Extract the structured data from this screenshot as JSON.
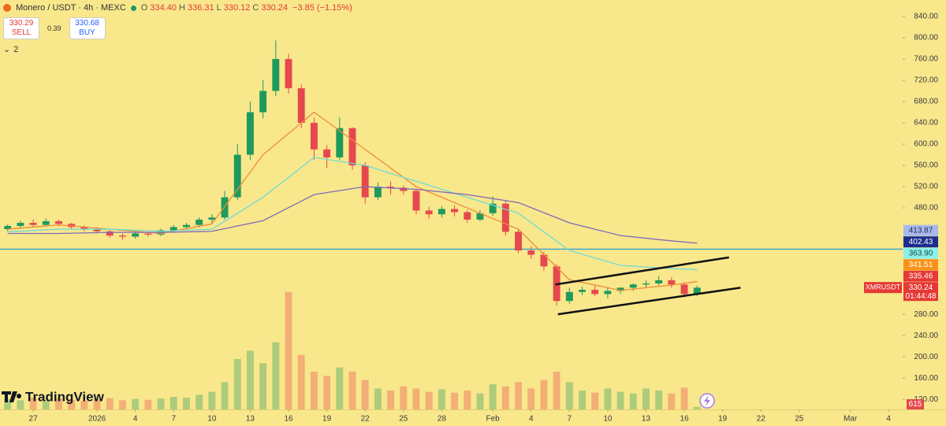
{
  "header": {
    "symbol": "Monero / USDT · 4h · MEXC",
    "ohlc": [
      {
        "label": "O",
        "value": "334.40"
      },
      {
        "label": "H",
        "value": "336.31"
      },
      {
        "label": "L",
        "value": "330.12"
      },
      {
        "label": "C",
        "value": "330.24"
      }
    ],
    "change": "−3.85 (−1.15%)",
    "sell": {
      "price": "330.29",
      "label": "SELL"
    },
    "spread": "0.39",
    "buy": {
      "price": "330.68",
      "label": "BUY"
    },
    "indicators": "2"
  },
  "branding": "TradingView",
  "chart_data": {
    "type": "candlestick",
    "x": [
      -2,
      -1,
      0,
      1,
      2,
      3,
      4,
      5,
      6,
      7,
      8,
      9,
      10,
      11,
      12,
      13,
      14,
      15,
      16,
      17,
      18,
      19,
      20,
      21,
      22,
      23,
      24,
      25,
      26,
      27,
      28,
      29,
      30,
      31,
      32,
      33,
      34,
      35,
      36,
      37,
      38,
      39,
      40,
      41,
      42,
      43,
      44,
      45,
      46,
      47,
      48,
      49,
      50,
      51,
      52
    ],
    "open": [
      440,
      446,
      452,
      448,
      455,
      450,
      444,
      440,
      436,
      428,
      426,
      432,
      430,
      438,
      444,
      448,
      458,
      462,
      500,
      580,
      660,
      700,
      760,
      705,
      640,
      590,
      575,
      630,
      560,
      500,
      520,
      518,
      512,
      475,
      468,
      478,
      472,
      458,
      470,
      488,
      435,
      400,
      392,
      370,
      305,
      322,
      326,
      318,
      324,
      330,
      336,
      338,
      344,
      336,
      318
    ],
    "high": [
      449,
      456,
      458,
      460,
      458,
      452,
      447,
      444,
      438,
      432,
      436,
      435,
      441,
      448,
      452,
      462,
      468,
      512,
      600,
      680,
      720,
      795,
      770,
      712,
      650,
      598,
      650,
      632,
      566,
      528,
      530,
      522,
      515,
      482,
      484,
      485,
      476,
      476,
      502,
      495,
      440,
      408,
      398,
      374,
      330,
      332,
      334,
      330,
      330,
      338,
      344,
      352,
      350,
      340,
      334
    ],
    "low": [
      436,
      441,
      444,
      445,
      446,
      440,
      436,
      432,
      424,
      420,
      422,
      426,
      427,
      434,
      440,
      444,
      452,
      458,
      495,
      570,
      648,
      690,
      695,
      630,
      570,
      555,
      570,
      552,
      488,
      495,
      505,
      505,
      468,
      460,
      462,
      464,
      452,
      455,
      465,
      428,
      395,
      384,
      362,
      296,
      300,
      316,
      314,
      310,
      318,
      324,
      330,
      334,
      330,
      312,
      314
    ],
    "close": [
      446,
      452,
      448,
      455,
      450,
      444,
      440,
      436,
      428,
      426,
      432,
      430,
      438,
      444,
      448,
      458,
      462,
      500,
      580,
      660,
      700,
      760,
      705,
      640,
      590,
      575,
      630,
      560,
      500,
      520,
      518,
      512,
      475,
      468,
      478,
      472,
      458,
      470,
      488,
      435,
      400,
      392,
      370,
      305,
      322,
      326,
      318,
      324,
      330,
      336,
      338,
      344,
      336,
      318,
      330
    ],
    "volume": [
      2500,
      2200,
      2800,
      2000,
      2600,
      2300,
      2100,
      2400,
      2700,
      2200,
      2500,
      2300,
      2600,
      3000,
      2800,
      3500,
      4200,
      6500,
      12000,
      14000,
      11000,
      16000,
      28000,
      13000,
      9000,
      8000,
      10000,
      9000,
      7000,
      5000,
      4500,
      5500,
      5000,
      4200,
      4800,
      4000,
      4500,
      3800,
      6000,
      5500,
      6500,
      5000,
      7000,
      9000,
      6500,
      4500,
      4000,
      5000,
      4200,
      3800,
      5000,
      4500,
      3800,
      5200,
      615
    ],
    "volume_lim": [
      0,
      30000
    ],
    "up_color": "#1e9a5c",
    "down_color": "#e5484d",
    "ma_x": [
      -2,
      2,
      6,
      10,
      14,
      18,
      22,
      26,
      30,
      34,
      38,
      42,
      46,
      50,
      52
    ],
    "moving_averages": [
      {
        "color": "#f08a3c",
        "values": [
          440,
          448,
          440,
          432,
          450,
          580,
          660,
          590,
          520,
          480,
          440,
          345,
          325,
          335,
          341.51
        ]
      },
      {
        "color": "#6fdcd4",
        "values": [
          435,
          440,
          440,
          436,
          440,
          500,
          575,
          560,
          530,
          500,
          470,
          400,
          372,
          366,
          363.9
        ]
      },
      {
        "color": "#7d6cb8",
        "values": [
          432,
          432,
          434,
          434,
          436,
          456,
          505,
          520,
          515,
          505,
          490,
          452,
          428,
          418,
          413.87
        ]
      }
    ],
    "price_line": {
      "value": 402.43,
      "color": "#35a3c9"
    },
    "trendlines": [
      {
        "x": [
          40.9,
          54.5
        ],
        "y": [
          336,
          387
        ]
      },
      {
        "x": [
          41.1,
          55.4
        ],
        "y": [
          280,
          330
        ]
      }
    ],
    "price_tags": [
      {
        "value": 413.87,
        "color": "#a9b9ec",
        "text_color": "#1b2a55"
      },
      {
        "value": 402.43,
        "color": "#1c2f8f",
        "text_color": "#ffffff"
      },
      {
        "value": 363.9,
        "label": "363.90",
        "color": "#8ff0ea",
        "text_color": "#10494a"
      },
      {
        "value": 341.51,
        "color": "#f7931a",
        "text_color": "#ffffff"
      },
      {
        "value": 335.46,
        "color": "#e53935",
        "text_color": "#ffffff"
      },
      {
        "value": 330.24,
        "color": "#e53935",
        "text_color": "#ffffff",
        "symbol": "XMRUSDT",
        "countdown": "01:44:48"
      }
    ],
    "xlim": [
      -2.6,
      68.1
    ],
    "xticks": [
      {
        "value": 0,
        "label": "27"
      },
      {
        "value": 5,
        "label": "2026"
      },
      {
        "value": 8,
        "label": "4"
      },
      {
        "value": 11,
        "label": "7"
      },
      {
        "value": 14,
        "label": "10"
      },
      {
        "value": 17,
        "label": "13"
      },
      {
        "value": 20,
        "label": "16"
      },
      {
        "value": 23,
        "label": "19"
      },
      {
        "value": 26,
        "label": "22"
      },
      {
        "value": 29,
        "label": "25"
      },
      {
        "value": 32,
        "label": "28"
      },
      {
        "value": 36,
        "label": "Feb"
      },
      {
        "value": 39,
        "label": "4"
      },
      {
        "value": 42,
        "label": "7"
      },
      {
        "value": 45,
        "label": "10"
      },
      {
        "value": 48,
        "label": "13"
      },
      {
        "value": 51,
        "label": "16"
      },
      {
        "value": 54,
        "label": "19"
      },
      {
        "value": 57,
        "label": "22"
      },
      {
        "value": 60,
        "label": "25"
      },
      {
        "value": 64,
        "label": "Mar"
      },
      {
        "value": 67,
        "label": "4"
      }
    ],
    "ylim": [
      101,
      871
    ],
    "yticks": [
      {
        "value": 840,
        "label": "840.00"
      },
      {
        "value": 800,
        "label": "800.00"
      },
      {
        "value": 760,
        "label": "760.00"
      },
      {
        "value": 720,
        "label": "720.00"
      },
      {
        "value": 680,
        "label": "680.00"
      },
      {
        "value": 640,
        "label": "640.00"
      },
      {
        "value": 600,
        "label": "600.00"
      },
      {
        "value": 560,
        "label": "560.00"
      },
      {
        "value": 520,
        "label": "520.00"
      },
      {
        "value": 480,
        "label": "480.00"
      },
      {
        "value": 280,
        "label": "280.00"
      },
      {
        "value": 240,
        "label": "240.00"
      },
      {
        "value": 200,
        "label": "200.00"
      },
      {
        "value": 160,
        "label": "160.00"
      },
      {
        "value": 120,
        "label": "120.00"
      }
    ],
    "grid": false
  }
}
